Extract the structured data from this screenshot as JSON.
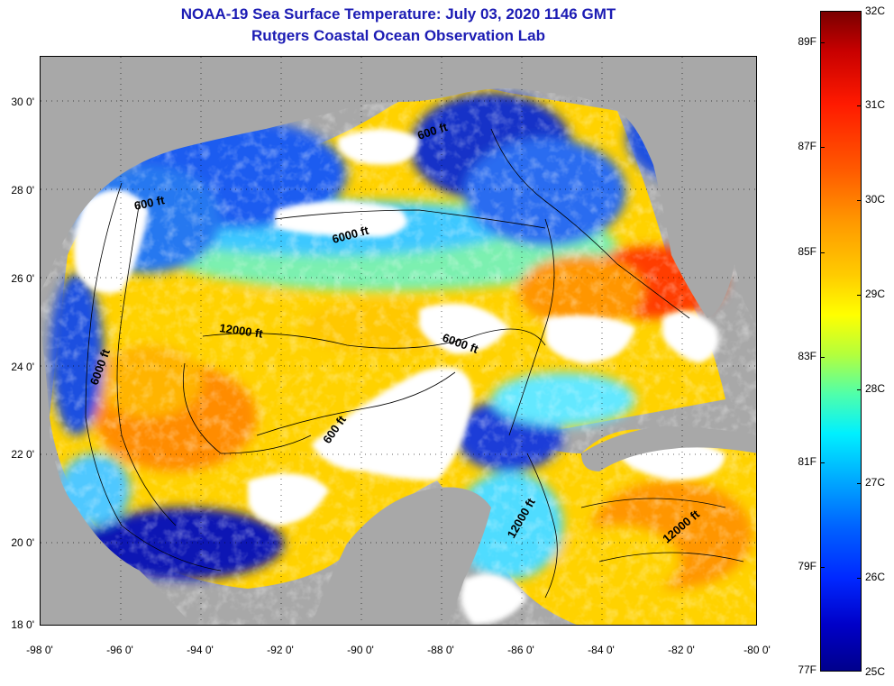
{
  "titles": {
    "line1": "NOAA-19 Sea Surface Temperature:  July 03, 2020 1146 GMT",
    "line2": "Rutgers Coastal Ocean Observation Lab"
  },
  "axes": {
    "latitude_labels": [
      "30 0'",
      "28 0'",
      "26 0'",
      "24 0'",
      "22 0'",
      "20 0'",
      "18 0'"
    ],
    "longitude_labels": [
      "-98 0'",
      "-96 0'",
      "-94 0'",
      "-92 0'",
      "-90 0'",
      "-88 0'",
      "-86 0'",
      "-84 0'",
      "-82 0'",
      "-80 0'"
    ]
  },
  "colorbar": {
    "fahrenheit_labels": [
      "89F",
      "87F",
      "85F",
      "83F",
      "81F",
      "79F",
      "77F"
    ],
    "celsius_labels": [
      "32C",
      "31C",
      "30C",
      "29C",
      "28C",
      "27C",
      "26C",
      "25C"
    ]
  },
  "contour_labels": [
    "600 ft",
    "600 ft",
    "6000 ft",
    "12000 ft",
    "6000 ft",
    "6000 ft",
    "600 ft",
    "12000 ft",
    "12000 ft"
  ],
  "colors": {
    "title": "#1c1cb4",
    "land": "#a8a8a8",
    "cloud": "#ffffff",
    "warm": "#ff6a00",
    "cold": "#0a14b4"
  }
}
